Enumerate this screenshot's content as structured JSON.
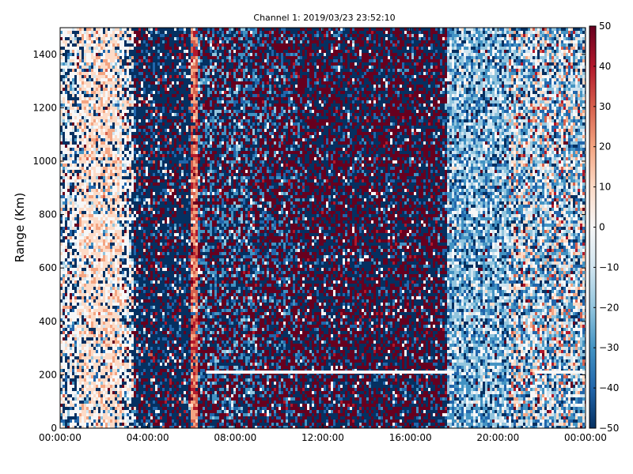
{
  "chart_data": {
    "type": "heatmap",
    "title": "Channel 1: 2019/03/23 23:52:10",
    "xlabel": "",
    "ylabel": "Range (Km)",
    "xlim": [
      "00:00:00",
      "24:00:00"
    ],
    "ylim": [
      0,
      1500
    ],
    "x_ticks": [
      "00:00:00",
      "04:00:00",
      "08:00:00",
      "12:00:00",
      "16:00:00",
      "20:00:00",
      "00:00:00"
    ],
    "y_ticks": [
      0,
      200,
      400,
      600,
      800,
      1000,
      1200,
      1400
    ],
    "colorbar": {
      "range": [
        -50,
        50
      ],
      "ticks": [
        50,
        40,
        30,
        20,
        10,
        0,
        -10,
        -20,
        -30,
        -40,
        -50
      ],
      "colormap": "RdBu_r",
      "colors": [
        "#053061",
        "#2166ac",
        "#4393c3",
        "#92c5de",
        "#d1e5f0",
        "#f7f7f7",
        "#fddbc7",
        "#f4a582",
        "#d6604d",
        "#b2182b",
        "#67001f"
      ]
    },
    "grid": false,
    "bands": [
      {
        "start": "00:00:00",
        "end": "00:50:00",
        "pattern": "noisy-light"
      },
      {
        "start": "00:50:00",
        "end": "02:50:00",
        "pattern": "light-red"
      },
      {
        "start": "02:50:00",
        "end": "03:20:00",
        "pattern": "noisy-light"
      },
      {
        "start": "03:20:00",
        "end": "06:00:00",
        "pattern": "dark-blue"
      },
      {
        "start": "06:00:00",
        "end": "06:20:00",
        "pattern": "red-stripe"
      },
      {
        "start": "06:20:00",
        "end": "09:00:00",
        "pattern": "mixed-blue"
      },
      {
        "start": "09:00:00",
        "end": "11:00:00",
        "pattern": "blue-red-noise"
      },
      {
        "start": "11:00:00",
        "end": "17:40:00",
        "pattern": "red-noise"
      },
      {
        "start": "17:40:00",
        "end": "20:30:00",
        "pattern": "light-blue"
      },
      {
        "start": "20:30:00",
        "end": "24:00:00",
        "pattern": "mixed-light-red"
      }
    ],
    "features": [
      {
        "type": "horizontal-line",
        "start": "06:40:00",
        "end": "18:00:00",
        "range_km": 210
      },
      {
        "type": "horizontal-line",
        "start": "21:40:00",
        "end": "24:00:00",
        "range_km": 210
      }
    ]
  }
}
